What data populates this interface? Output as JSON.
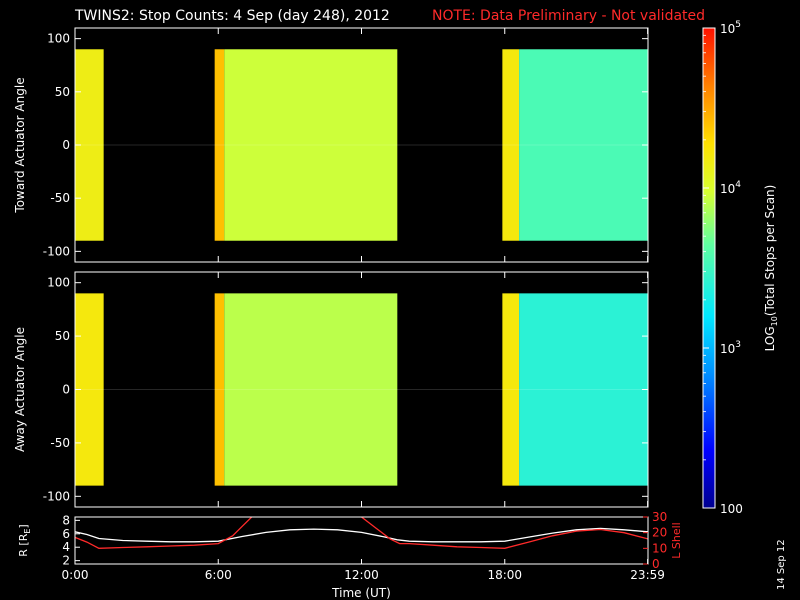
{
  "title": "TWINS2: Stop Counts:  4 Sep (day 248), 2012",
  "note": "NOTE: Data Preliminary - Not validated",
  "date_stamp": "14 Sep 12",
  "colors": {
    "background": "#000000",
    "note": "#ff2a2a",
    "r_line": "#ffffff",
    "lshell_line": "#ff2a2a"
  },
  "chart_data": [
    {
      "type": "heatmap",
      "ylabel": "Toward Actuator Angle",
      "ylim": [
        -110,
        110
      ],
      "yticks": [
        100,
        50,
        0,
        -50,
        -100
      ],
      "ytick_labels": [
        "100",
        "50",
        "0",
        "-50",
        "-100"
      ],
      "xlim_hours": [
        0,
        24
      ],
      "data_coverage_hours": [
        [
          0.0,
          1.2
        ],
        [
          5.85,
          13.5
        ],
        [
          17.9,
          24.0
        ]
      ],
      "angle_coverage": [
        -90,
        90
      ],
      "log10_counts_by_interval": [
        {
          "start": 0.0,
          "end": 1.2,
          "value": 4.15
        },
        {
          "start": 5.85,
          "end": 6.25,
          "value": 4.4
        },
        {
          "start": 6.25,
          "end": 13.5,
          "value": 3.95
        },
        {
          "start": 17.9,
          "end": 18.6,
          "value": 4.2
        },
        {
          "start": 18.6,
          "end": 24.0,
          "value": 3.55
        }
      ]
    },
    {
      "type": "heatmap",
      "ylabel": "Away Actuator Angle",
      "ylim": [
        -110,
        110
      ],
      "yticks": [
        100,
        50,
        0,
        -50,
        -100
      ],
      "ytick_labels": [
        "100",
        "50",
        "0",
        "-50",
        "-100"
      ],
      "xlim_hours": [
        0,
        24
      ],
      "data_coverage_hours": [
        [
          0.0,
          1.2
        ],
        [
          5.85,
          13.5
        ],
        [
          17.9,
          24.0
        ]
      ],
      "angle_coverage": [
        -90,
        90
      ],
      "log10_counts_by_interval": [
        {
          "start": 0.0,
          "end": 1.2,
          "value": 4.2
        },
        {
          "start": 5.85,
          "end": 6.25,
          "value": 4.4
        },
        {
          "start": 6.25,
          "end": 13.5,
          "value": 3.9
        },
        {
          "start": 17.9,
          "end": 18.6,
          "value": 4.2
        },
        {
          "start": 18.6,
          "end": 24.0,
          "value": 3.4
        }
      ]
    },
    {
      "type": "line",
      "xlabel": "Time (UT)",
      "xticks": [
        0,
        6,
        12,
        18,
        23.983
      ],
      "xtick_labels": [
        "0:00",
        "6:00",
        "12:00",
        "18:00",
        "23:59"
      ],
      "left_axis": {
        "ylabel": "R [R",
        "ylabel_sub": "E",
        "ylabel_close": "]",
        "ylim": [
          1.5,
          8.5
        ],
        "yticks": [
          2,
          4,
          6,
          8
        ],
        "ytick_labels": [
          "2",
          "4",
          "6",
          "8"
        ]
      },
      "right_axis": {
        "ylabel": "L Shell",
        "ylim": [
          0,
          30
        ],
        "yticks": [
          0,
          10,
          20,
          30
        ],
        "ytick_labels": [
          "0",
          "10",
          "20",
          "30"
        ]
      },
      "series": [
        {
          "axis": "left",
          "x": [
            0,
            0.5,
            1,
            2,
            3,
            4,
            5,
            6,
            7,
            8,
            9,
            10,
            11,
            12,
            13,
            13.5,
            14,
            15,
            16,
            17,
            18,
            19,
            20,
            21,
            22,
            23,
            24
          ],
          "y": [
            6.3,
            5.9,
            5.3,
            5.0,
            4.9,
            4.8,
            4.8,
            4.9,
            5.6,
            6.2,
            6.6,
            6.7,
            6.6,
            6.2,
            5.5,
            5.1,
            4.9,
            4.8,
            4.8,
            4.8,
            4.9,
            5.5,
            6.1,
            6.6,
            6.8,
            6.6,
            6.3
          ]
        },
        {
          "axis": "right",
          "x": [
            0,
            0.5,
            1,
            2,
            3,
            4,
            5,
            6,
            6.6,
            7,
            7.4
          ],
          "y": [
            17,
            14,
            10,
            10.5,
            11,
            11.5,
            12,
            13,
            18,
            24,
            30
          ]
        },
        {
          "axis": "right",
          "x": [
            12,
            12.6,
            13.2,
            13.6,
            14,
            15,
            16,
            17,
            18,
            19,
            20,
            21,
            22,
            23,
            24
          ],
          "y": [
            30,
            23,
            16,
            13,
            13,
            12,
            11,
            10.5,
            10,
            14,
            18,
            21,
            22,
            20,
            16
          ]
        }
      ]
    }
  ],
  "colorbar": {
    "label_prefix": "LOG",
    "label_sub": "10",
    "label_suffix": "(Total Stops per Scan)",
    "tick_labels": [
      {
        "base": "10",
        "exp": "5",
        "log": 5
      },
      {
        "base": "10",
        "exp": "4",
        "log": 4
      },
      {
        "base": "10",
        "exp": "3",
        "log": 3
      },
      {
        "base": "100",
        "exp": "",
        "log": 2
      }
    ],
    "range_log": [
      2,
      5
    ]
  }
}
